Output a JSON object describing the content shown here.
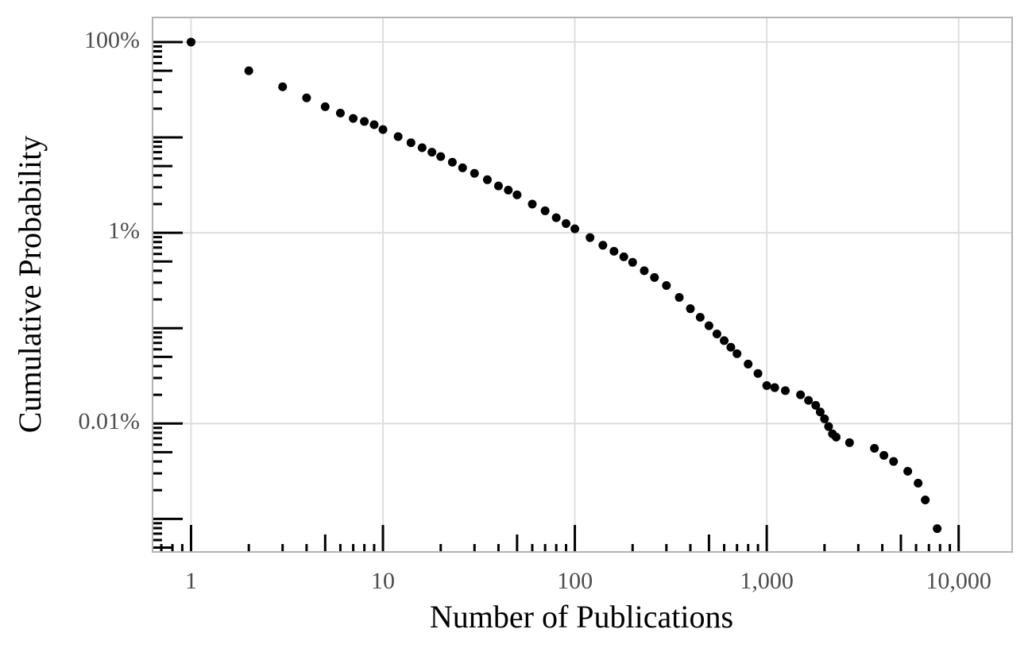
{
  "chart_data": {
    "type": "scatter",
    "x_label": "Number of Publications",
    "y_label": "Cumulative Probability",
    "xlog": true,
    "ylog": true,
    "grid": true,
    "color": "#000000",
    "xlim": [
      0.63,
      19000
    ],
    "ylim": [
      0.00045,
      181
    ],
    "xticks": [
      1,
      10,
      100,
      {
        "value": 1000,
        "label": "1,000"
      },
      {
        "value": 10000,
        "label": "10,000"
      }
    ],
    "yticks": [
      {
        "value": 0.01,
        "label": "0.01%"
      },
      {
        "value": 1,
        "label": "1%"
      },
      {
        "value": 100,
        "label": "100%"
      }
    ],
    "xlogticks": [
      0.7,
      0.8,
      0.9,
      1,
      2,
      3,
      4,
      5,
      6,
      7,
      8,
      9,
      10,
      20,
      30,
      40,
      50,
      60,
      70,
      80,
      90,
      100,
      200,
      300,
      400,
      500,
      600,
      700,
      800,
      900,
      1000,
      2000,
      3000,
      4000,
      5000,
      6000,
      7000,
      8000,
      9000,
      10000
    ],
    "ylogticks": [
      0.0005,
      0.0006,
      0.0007,
      0.0008,
      0.0009,
      0.001,
      0.002,
      0.003,
      0.004,
      0.005,
      0.006,
      0.007,
      0.008,
      0.009,
      0.01,
      0.02,
      0.03,
      0.04,
      0.05,
      0.06,
      0.07,
      0.08,
      0.09,
      0.1,
      0.2,
      0.3,
      0.4,
      0.5,
      0.6,
      0.7,
      0.8,
      0.9,
      1,
      2,
      3,
      4,
      5,
      6,
      7,
      8,
      9,
      10,
      20,
      30,
      40,
      50,
      60,
      70,
      80,
      90,
      100
    ],
    "x": [
      1,
      2,
      3,
      4,
      5,
      6,
      7,
      8,
      9,
      10,
      12,
      14,
      16,
      18,
      20,
      23,
      26,
      30,
      35,
      40,
      45,
      50,
      60,
      70,
      80,
      90,
      100,
      120,
      140,
      160,
      180,
      200,
      230,
      260,
      300,
      350,
      400,
      450,
      500,
      550,
      600,
      650,
      700,
      800,
      900,
      1000,
      1100,
      1250,
      1500,
      1650,
      1800,
      1900,
      2000,
      2100,
      2200,
      2300,
      2700,
      3640,
      4080,
      4580,
      5430,
      6150,
      6700,
      7730
    ],
    "y": [
      100,
      50,
      34,
      26,
      21,
      18,
      15.8,
      14.7,
      13.6,
      12.1,
      10.2,
      8.8,
      7.8,
      7.0,
      6.3,
      5.5,
      4.8,
      4.2,
      3.6,
      3.1,
      2.8,
      2.5,
      2.0,
      1.7,
      1.44,
      1.25,
      1.1,
      0.89,
      0.74,
      0.64,
      0.56,
      0.49,
      0.4,
      0.34,
      0.28,
      0.21,
      0.16,
      0.13,
      0.106,
      0.087,
      0.074,
      0.063,
      0.054,
      0.042,
      0.0335,
      0.025,
      0.0238,
      0.0221,
      0.02,
      0.0175,
      0.0155,
      0.0132,
      0.0112,
      0.0093,
      0.0078,
      0.0072,
      0.0063,
      0.0055,
      0.00464,
      0.004,
      0.00316,
      0.00237,
      0.00158,
      0.00079
    ]
  }
}
